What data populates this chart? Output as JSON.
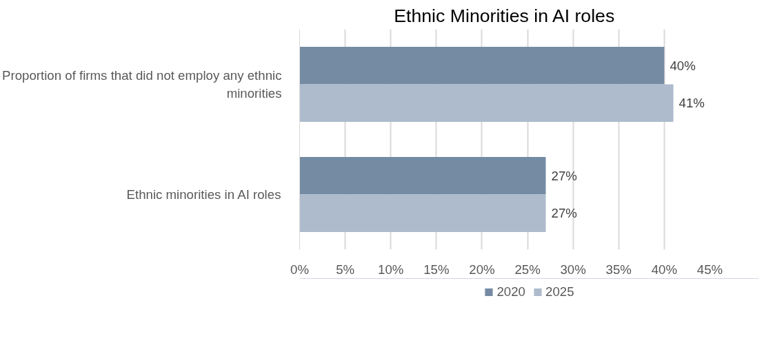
{
  "chart_data": {
    "type": "bar",
    "orientation": "horizontal",
    "title": "Ethnic Minorities in AI roles",
    "categories": [
      "Proportion of firms that did not employ any ethnic minorities",
      "Ethnic minorities in AI roles"
    ],
    "series": [
      {
        "name": "2020",
        "color": "#748ba3",
        "values": [
          40,
          27
        ],
        "value_labels": [
          "40%",
          "27%"
        ]
      },
      {
        "name": "2025",
        "color": "#adbbcc",
        "values": [
          41,
          27
        ],
        "value_labels": [
          "41%",
          "27%"
        ]
      }
    ],
    "xlim": [
      0,
      45
    ],
    "xticks": [
      {
        "value": 0,
        "label": "0%"
      },
      {
        "value": 5,
        "label": "5%"
      },
      {
        "value": 10,
        "label": "10%"
      },
      {
        "value": 15,
        "label": "15%"
      },
      {
        "value": 20,
        "label": "20%"
      },
      {
        "value": 25,
        "label": "25%"
      },
      {
        "value": 30,
        "label": "30%"
      },
      {
        "value": 35,
        "label": "35%"
      },
      {
        "value": 40,
        "label": "40%"
      },
      {
        "value": 45,
        "label": "45%"
      }
    ],
    "grid": "x",
    "legend": "bottom"
  }
}
